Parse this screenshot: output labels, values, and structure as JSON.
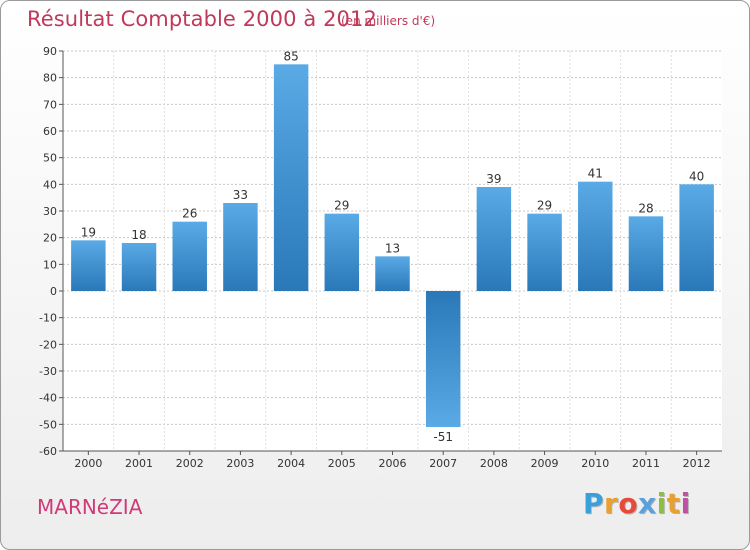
{
  "header": {
    "title": "Résultat Comptable 2000 à 2012",
    "unit": "(en milliers d'€)"
  },
  "footer": {
    "place": "MARNéZIA",
    "brand_letters": [
      "P",
      "r",
      "o",
      "x",
      "i",
      "t",
      "i"
    ]
  },
  "colors": {
    "title": "#c0395a",
    "place": "#d03a78",
    "bar_light": "#5aaae6",
    "bar_dark": "#2a78b8",
    "brand": [
      "#3aa0dc",
      "#e8a030",
      "#e84a3a",
      "#5aa0dc",
      "#8ac040",
      "#e8a030",
      "#c050a0"
    ]
  },
  "chart_data": {
    "type": "bar",
    "title": "Résultat Comptable 2000 à 2012",
    "ylabel": "",
    "xlabel": "",
    "categories": [
      "2000",
      "2001",
      "2002",
      "2003",
      "2004",
      "2005",
      "2006",
      "2007",
      "2008",
      "2009",
      "2010",
      "2011",
      "2012"
    ],
    "values": [
      19,
      18,
      26,
      33,
      85,
      29,
      13,
      -51,
      39,
      29,
      41,
      28,
      40
    ],
    "ylim": [
      -60,
      90
    ],
    "yticks": [
      90,
      80,
      70,
      60,
      50,
      40,
      30,
      20,
      10,
      0,
      -10,
      -20,
      -30,
      -40,
      -50,
      -60
    ],
    "grid": true
  }
}
